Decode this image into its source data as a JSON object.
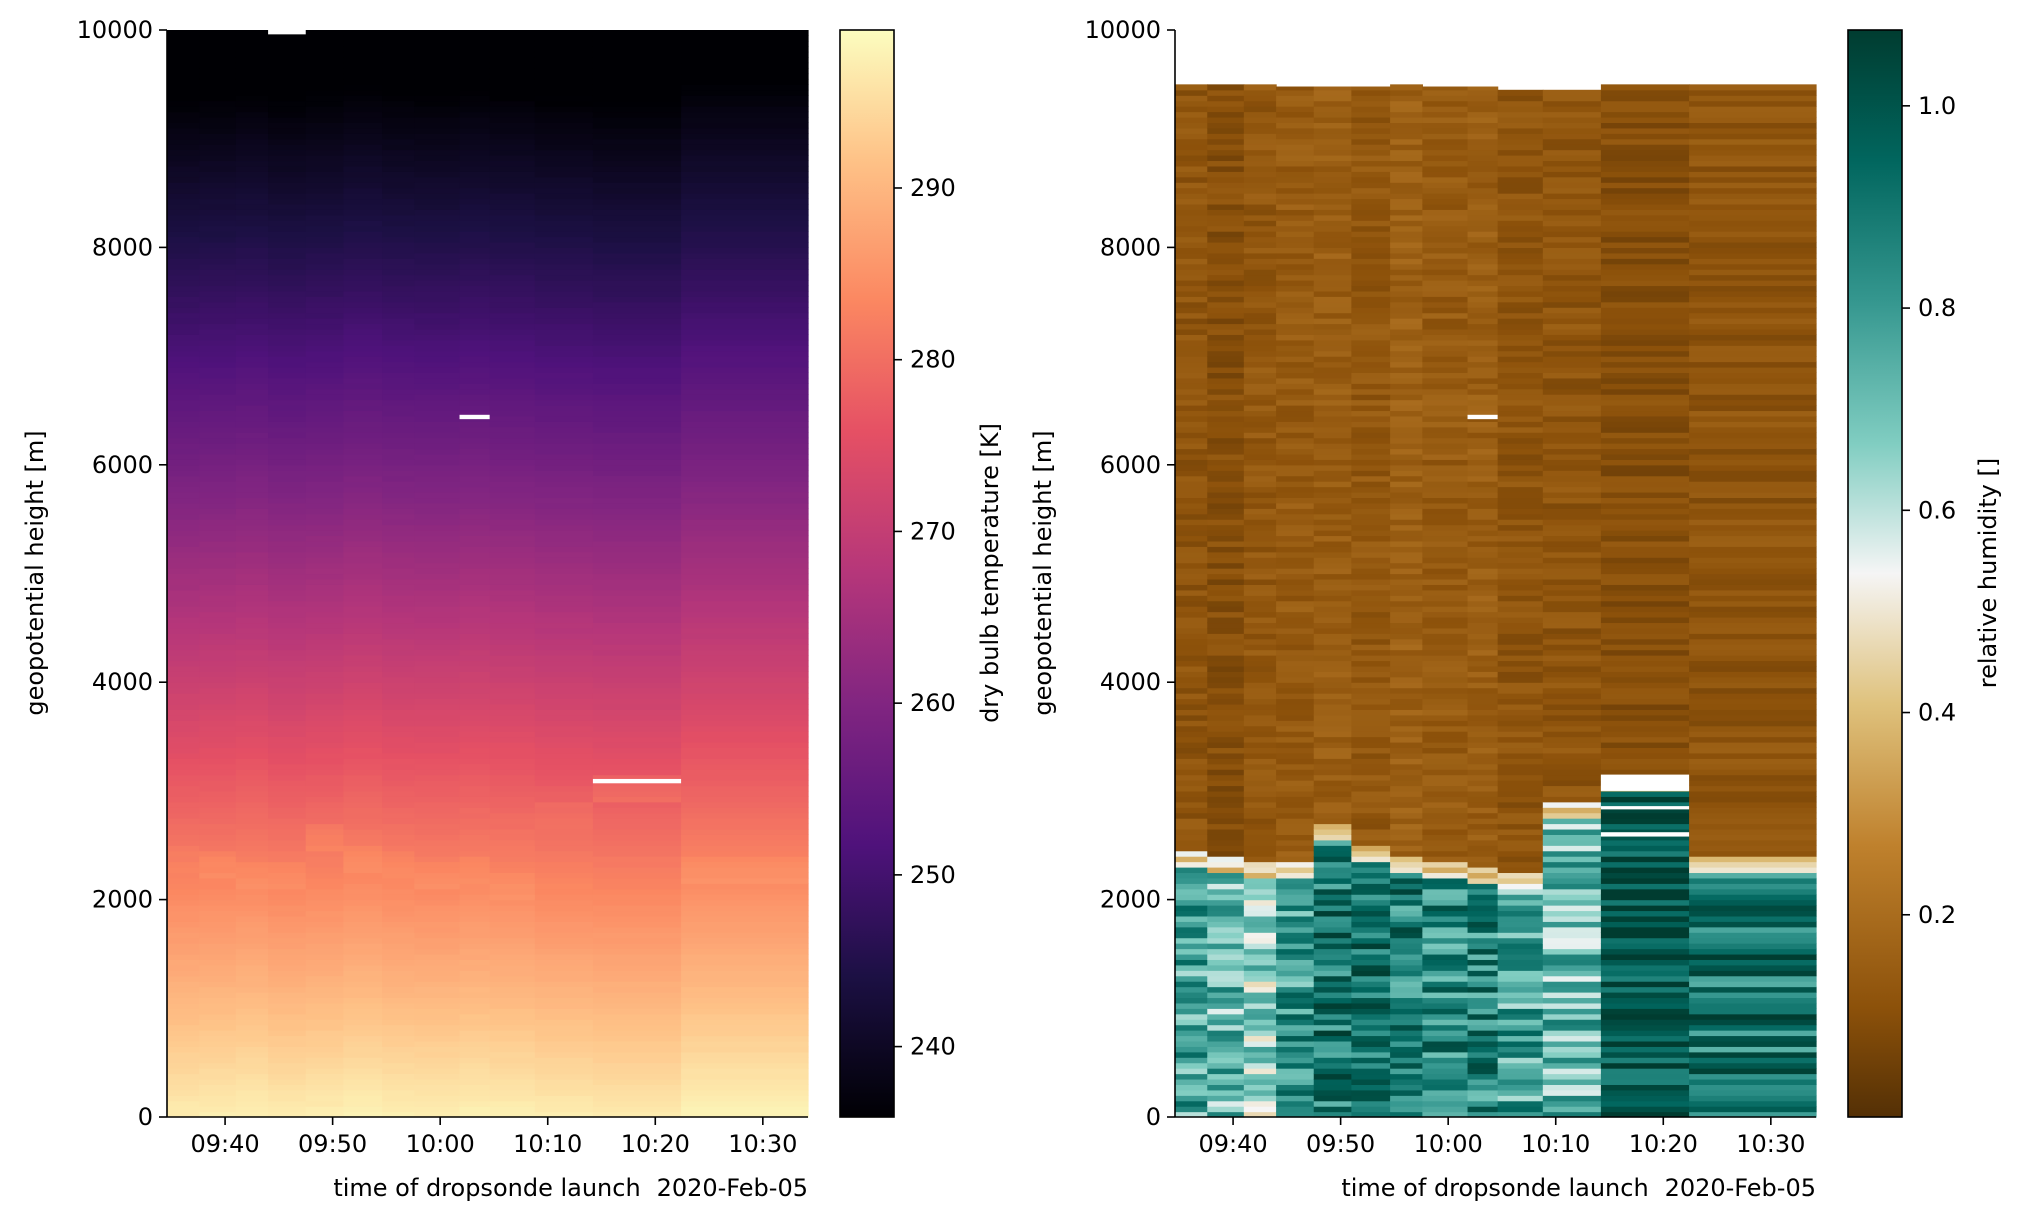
{
  "date_label": "2020-Feb-05",
  "chart_data": [
    {
      "type": "heatmap",
      "colormap": "magma",
      "xlabel": "time of dropsonde launch",
      "ylabel": "geopotential height [m]",
      "colorbar_label": "dry bulb temperature [K]",
      "x_tick_labels": [
        "09:40",
        "09:50",
        "10:00",
        "10:10",
        "10:20",
        "10:30"
      ],
      "y_tick_labels": [
        "0",
        "2000",
        "4000",
        "6000",
        "8000",
        "10000"
      ],
      "colorbar_tick_labels": [
        "240",
        "250",
        "260",
        "270",
        "280",
        "290"
      ],
      "ylim": [
        0,
        10000
      ],
      "clim": [
        235.9,
        299.2
      ],
      "x_range_minutes": [
        "09:34.6",
        "10:34.2"
      ],
      "launch_columns": [
        {
          "start": "09:34.6",
          "end": "09:37.6",
          "surface_temp": 297.0,
          "lapse": 6.55,
          "inversion_height": 2350,
          "inversion_dip": 0.6
        },
        {
          "start": "09:37.6",
          "end": "09:41.0",
          "surface_temp": 297.2,
          "lapse": 6.55,
          "inversion_height": 2300,
          "inversion_dip": 1.2
        },
        {
          "start": "09:41.0",
          "end": "09:44.0",
          "surface_temp": 297.5,
          "lapse": 6.55,
          "inversion_height": 2200,
          "inversion_dip": 0.8
        },
        {
          "start": "09:44.0",
          "end": "09:47.5",
          "surface_temp": 297.0,
          "lapse": 6.55,
          "inversion_height": 2200,
          "inversion_dip": 1.0
        },
        {
          "start": "09:47.5",
          "end": "09:51.0",
          "surface_temp": 297.3,
          "lapse": 6.55,
          "inversion_height": 2550,
          "inversion_dip": 1.6
        },
        {
          "start": "09:51.0",
          "end": "09:54.6",
          "surface_temp": 297.8,
          "lapse": 6.55,
          "inversion_height": 2350,
          "inversion_dip": 1.3
        },
        {
          "start": "09:54.6",
          "end": "09:57.6",
          "surface_temp": 297.4,
          "lapse": 6.55,
          "inversion_height": 2300,
          "inversion_dip": 1.0
        },
        {
          "start": "09:57.6",
          "end": "10:01.8",
          "surface_temp": 297.3,
          "lapse": 6.55,
          "inversion_height": 2200,
          "inversion_dip": 0.9
        },
        {
          "start": "10:01.8",
          "end": "10:04.6",
          "surface_temp": 297.6,
          "lapse": 6.55,
          "inversion_height": 2250,
          "inversion_dip": 0.8
        },
        {
          "start": "10:04.6",
          "end": "10:08.8",
          "surface_temp": 297.4,
          "lapse": 6.55,
          "inversion_height": 2100,
          "inversion_dip": 0.7
        },
        {
          "start": "10:08.8",
          "end": "10:14.2",
          "surface_temp": 297.0,
          "lapse": 6.55,
          "inversion_height": 2750,
          "inversion_dip": 0.9
        },
        {
          "start": "10:14.2",
          "end": "10:22.4",
          "surface_temp": 296.7,
          "lapse": 6.55,
          "inversion_height": 3000,
          "inversion_dip": 2.0
        },
        {
          "start": "10:22.4",
          "end": "10:34.2",
          "surface_temp": 298.0,
          "lapse": 6.55,
          "inversion_height": 2250,
          "inversion_dip": 1.1
        }
      ],
      "missing_segments": [
        {
          "start": "09:44.0",
          "end": "09:47.5",
          "height_from": 9960,
          "height_to": 10000
        },
        {
          "start": "10:01.8",
          "end": "10:04.6",
          "height_from": 6420,
          "height_to": 6460
        },
        {
          "start": "10:14.2",
          "end": "10:22.4",
          "height_from": 3070,
          "height_to": 3110
        }
      ]
    },
    {
      "type": "heatmap",
      "colormap": "BrBG",
      "xlabel": "time of dropsonde launch",
      "ylabel": "geopotential height [m]",
      "colorbar_label": "relative humidity []",
      "x_tick_labels": [
        "09:40",
        "09:50",
        "10:00",
        "10:10",
        "10:20",
        "10:30"
      ],
      "y_tick_labels": [
        "0",
        "2000",
        "4000",
        "6000",
        "8000",
        "10000"
      ],
      "colorbar_tick_labels": [
        "0.2",
        "0.4",
        "0.6",
        "0.8",
        "1.0"
      ],
      "ylim": [
        0,
        10000
      ],
      "clim": [
        0.0,
        1.075
      ],
      "x_range_minutes": [
        "09:34.6",
        "10:34.2"
      ],
      "launch_columns": [
        {
          "start": "09:34.6",
          "end": "09:37.6",
          "top_height": 9500,
          "boundary_height": 2300,
          "lower_rh": 0.78,
          "upper_rh": 0.12
        },
        {
          "start": "09:37.6",
          "end": "09:41.0",
          "top_height": 9500,
          "boundary_height": 2250,
          "lower_rh": 0.72,
          "upper_rh": 0.1
        },
        {
          "start": "09:41.0",
          "end": "09:44.0",
          "top_height": 9500,
          "boundary_height": 2200,
          "lower_rh": 0.62,
          "upper_rh": 0.13
        },
        {
          "start": "09:44.0",
          "end": "09:47.5",
          "top_height": 9480,
          "boundary_height": 2200,
          "lower_rh": 0.82,
          "upper_rh": 0.14
        },
        {
          "start": "09:47.5",
          "end": "09:51.0",
          "top_height": 9480,
          "boundary_height": 2550,
          "lower_rh": 0.9,
          "upper_rh": 0.15
        },
        {
          "start": "09:51.0",
          "end": "09:54.6",
          "top_height": 9480,
          "boundary_height": 2350,
          "lower_rh": 0.92,
          "upper_rh": 0.13
        },
        {
          "start": "09:54.6",
          "end": "09:57.6",
          "top_height": 9500,
          "boundary_height": 2250,
          "lower_rh": 0.88,
          "upper_rh": 0.16
        },
        {
          "start": "09:57.6",
          "end": "10:01.8",
          "top_height": 9480,
          "boundary_height": 2200,
          "lower_rh": 0.85,
          "upper_rh": 0.14
        },
        {
          "start": "10:01.8",
          "end": "10:04.6",
          "top_height": 9480,
          "boundary_height": 2150,
          "lower_rh": 0.86,
          "upper_rh": 0.15
        },
        {
          "start": "10:04.6",
          "end": "10:08.8",
          "top_height": 9450,
          "boundary_height": 2100,
          "lower_rh": 0.78,
          "upper_rh": 0.12
        },
        {
          "start": "10:08.8",
          "end": "10:14.2",
          "top_height": 9450,
          "boundary_height": 2750,
          "lower_rh": 0.72,
          "upper_rh": 0.12
        },
        {
          "start": "10:14.2",
          "end": "10:22.4",
          "top_height": 9500,
          "boundary_height": 3000,
          "lower_rh": 1.02,
          "upper_rh": 0.1
        },
        {
          "start": "10:22.4",
          "end": "10:34.2",
          "top_height": 9500,
          "boundary_height": 2250,
          "lower_rh": 0.9,
          "upper_rh": 0.12
        }
      ],
      "missing_segments": [
        {
          "start": "10:01.8",
          "end": "10:04.6",
          "height_from": 6420,
          "height_to": 6460
        },
        {
          "start": "10:14.2",
          "end": "10:22.4",
          "height_from": 3000,
          "height_to": 3150
        },
        {
          "start": "10:14.2",
          "end": "10:22.4",
          "height_from": 2830,
          "height_to": 2860
        },
        {
          "start": "10:14.2",
          "end": "10:22.4",
          "height_from": 2580,
          "height_to": 2620
        }
      ]
    }
  ]
}
